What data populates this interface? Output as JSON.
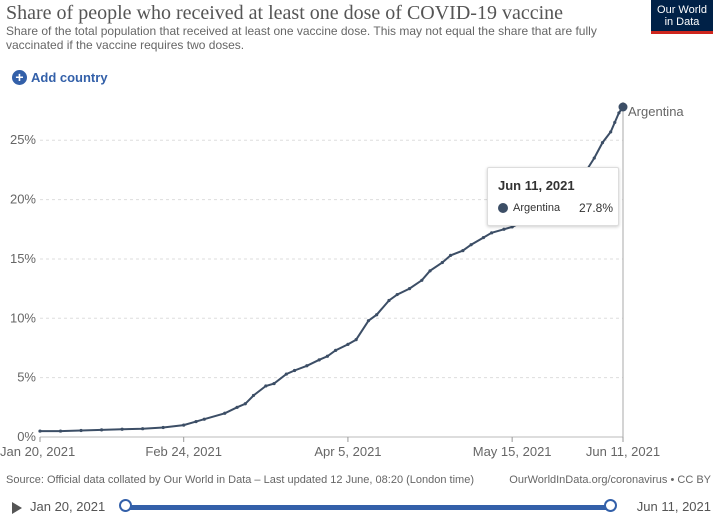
{
  "header": {
    "title": "Share of people who received at least one dose of COVID-19 vaccine",
    "subtitle": "Share of the total population that received at least one vaccine dose. This may not equal the share that are fully vaccinated if the vaccine requires two doses.",
    "logo_line1": "Our World",
    "logo_line2": "in Data"
  },
  "controls": {
    "add_country_label": "Add country"
  },
  "tooltip": {
    "date": "Jun 11, 2021",
    "series_name": "Argentina",
    "value": "27.8%"
  },
  "footer": {
    "source": "Source: Official data collated by Our World in Data – Last updated 12 June, 08:20 (London time)",
    "link": "OurWorldInData.org/coronavirus • CC BY"
  },
  "timeline": {
    "start": "Jan 20, 2021",
    "end": "Jun 11, 2021"
  },
  "colors": {
    "series": "#3c4e66",
    "accent": "#3360a9",
    "logo_bg": "#002147",
    "logo_bar": "#ce261e"
  },
  "chart_data": {
    "type": "line",
    "x_start": "2021-01-20",
    "x_end": "2021-06-11",
    "xlim": [
      0,
      142
    ],
    "ylim": [
      0,
      27.8
    ],
    "y_ticks": [
      0,
      5,
      10,
      15,
      20,
      25
    ],
    "y_tick_labels": [
      "0%",
      "5%",
      "10%",
      "15%",
      "20%",
      "25%"
    ],
    "x_ticks": [
      0,
      35,
      75,
      115,
      142
    ],
    "x_tick_labels": [
      "Jan 20, 2021",
      "Feb 24, 2021",
      "Apr 5, 2021",
      "May 15, 2021",
      "Jun 11, 2021"
    ],
    "grid": true,
    "series": [
      {
        "name": "Argentina",
        "end_label": "Argentina",
        "points": [
          [
            0,
            0.5
          ],
          [
            5,
            0.5
          ],
          [
            10,
            0.55
          ],
          [
            15,
            0.6
          ],
          [
            20,
            0.65
          ],
          [
            25,
            0.7
          ],
          [
            30,
            0.8
          ],
          [
            35,
            1.0
          ],
          [
            38,
            1.3
          ],
          [
            40,
            1.5
          ],
          [
            45,
            2.0
          ],
          [
            48,
            2.5
          ],
          [
            50,
            2.8
          ],
          [
            52,
            3.5
          ],
          [
            55,
            4.3
          ],
          [
            57,
            4.5
          ],
          [
            60,
            5.3
          ],
          [
            62,
            5.6
          ],
          [
            65,
            6.0
          ],
          [
            68,
            6.5
          ],
          [
            70,
            6.8
          ],
          [
            72,
            7.3
          ],
          [
            75,
            7.8
          ],
          [
            77,
            8.2
          ],
          [
            80,
            9.8
          ],
          [
            82,
            10.3
          ],
          [
            85,
            11.5
          ],
          [
            87,
            12.0
          ],
          [
            90,
            12.5
          ],
          [
            93,
            13.2
          ],
          [
            95,
            14.0
          ],
          [
            98,
            14.7
          ],
          [
            100,
            15.3
          ],
          [
            103,
            15.7
          ],
          [
            105,
            16.2
          ],
          [
            108,
            16.8
          ],
          [
            110,
            17.2
          ],
          [
            113,
            17.5
          ],
          [
            115,
            17.7
          ],
          [
            118,
            18.2
          ],
          [
            120,
            18.6
          ],
          [
            123,
            19.3
          ],
          [
            125,
            19.8
          ],
          [
            128,
            20.8
          ],
          [
            130,
            21.7
          ],
          [
            133,
            22.4
          ],
          [
            135,
            23.5
          ],
          [
            137,
            24.8
          ],
          [
            139,
            25.7
          ],
          [
            140,
            26.5
          ],
          [
            141,
            27.3
          ],
          [
            142,
            27.8
          ]
        ]
      }
    ]
  }
}
